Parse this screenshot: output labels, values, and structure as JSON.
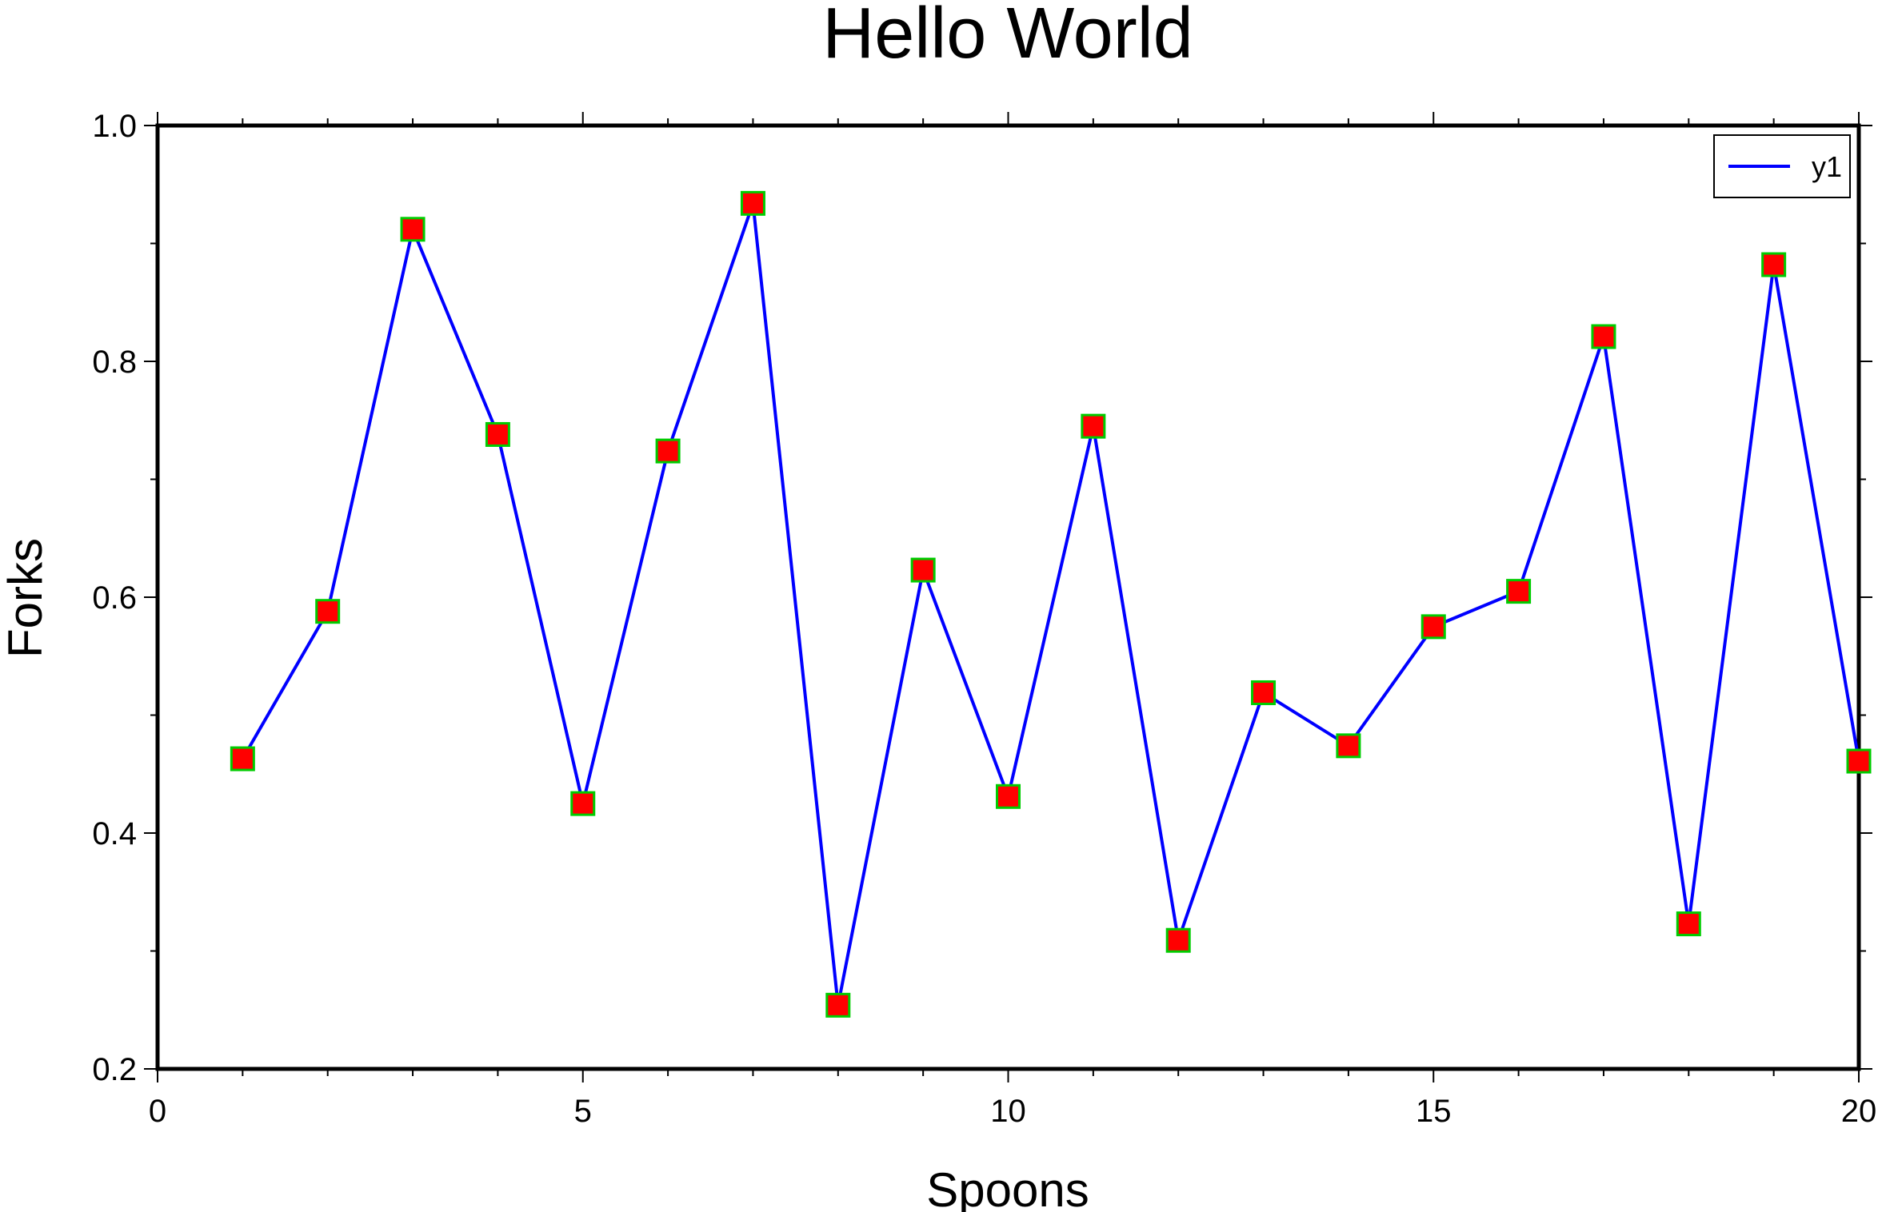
{
  "chart_data": {
    "type": "line",
    "title": "Hello World",
    "xlabel": "Spoons",
    "ylabel": "Forks",
    "xlim": [
      0,
      20
    ],
    "ylim": [
      0.2,
      1.0
    ],
    "x_ticks": [
      0,
      5,
      10,
      15,
      20
    ],
    "x_tick_labels": [
      "0",
      "5",
      "10",
      "15",
      "20"
    ],
    "x_minor_ticks": [
      1,
      2,
      3,
      4,
      6,
      7,
      8,
      9,
      11,
      12,
      13,
      14,
      16,
      17,
      18,
      19
    ],
    "y_ticks": [
      0.2,
      0.4,
      0.6,
      0.8,
      1.0
    ],
    "y_tick_labels": [
      "0.2",
      "0.4",
      "0.6",
      "0.8",
      "1.0"
    ],
    "y_minor_ticks": [
      0.3,
      0.5,
      0.7,
      0.9
    ],
    "grid": false,
    "legend_position": "top-right",
    "series": [
      {
        "name": "y1",
        "line_color": "#0000ff",
        "marker": "square",
        "marker_fill": "#ff0000",
        "marker_edge": "#00cc00",
        "x": [
          1,
          2,
          3,
          4,
          5,
          6,
          7,
          8,
          9,
          10,
          11,
          12,
          13,
          14,
          15,
          16,
          17,
          18,
          19,
          20
        ],
        "y": [
          0.463,
          0.588,
          0.912,
          0.738,
          0.425,
          0.724,
          0.934,
          0.254,
          0.623,
          0.431,
          0.745,
          0.309,
          0.519,
          0.474,
          0.575,
          0.605,
          0.821,
          0.323,
          0.882,
          0.461
        ]
      }
    ]
  }
}
